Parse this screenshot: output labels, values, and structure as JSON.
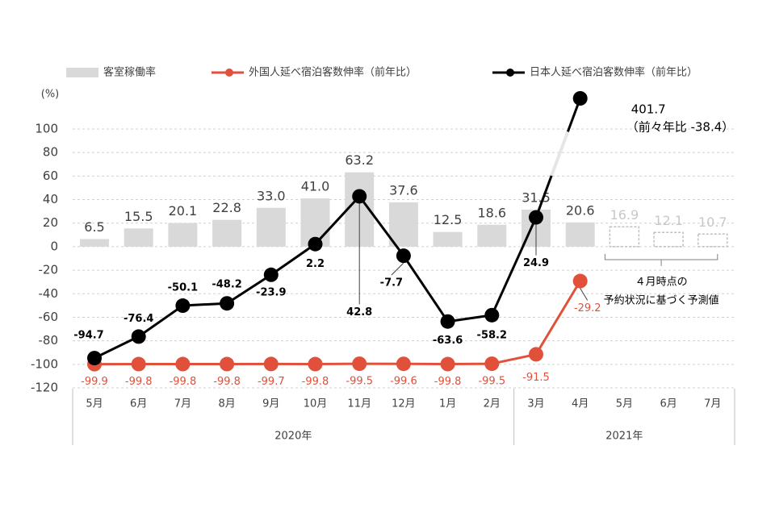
{
  "chart_data": {
    "type": "bar_line",
    "y_unit_label": "(%)",
    "categories": [
      "5月",
      "6月",
      "7月",
      "8月",
      "9月",
      "10月",
      "11月",
      "12月",
      "1月",
      "2月",
      "3月",
      "4月",
      "5月",
      "6月",
      "7月"
    ],
    "groups": [
      {
        "label": "2020年",
        "span": 10
      },
      {
        "label": "2021年",
        "span": 5
      }
    ],
    "ylim": [
      -120,
      100
    ],
    "yticks": [
      -120,
      -100,
      -80,
      -60,
      -40,
      -20,
      0,
      20,
      40,
      60,
      80,
      100
    ],
    "grid": true,
    "axis_break": true,
    "series": [
      {
        "name": "客室稼働率",
        "type": "bar",
        "color": "#d9d9d9",
        "values": [
          6.5,
          15.5,
          20.1,
          22.8,
          33.0,
          41.0,
          63.2,
          37.6,
          12.5,
          18.6,
          31.5,
          20.6,
          16.9,
          12.1,
          10.7
        ],
        "value_labels": [
          "6.5",
          "15.5",
          "20.1",
          "22.8",
          "33.0",
          "41.0",
          "63.2",
          "37.6",
          "12.5",
          "18.6",
          "31.5",
          "20.6",
          "16.9",
          "12.1",
          "10.7"
        ],
        "forecast": [
          false,
          false,
          false,
          false,
          false,
          false,
          false,
          false,
          false,
          false,
          false,
          false,
          true,
          true,
          true
        ]
      },
      {
        "name": "外国人延べ宿泊客数伸率（前年比）",
        "type": "line",
        "color": "#e0503a",
        "values": [
          -99.9,
          -99.8,
          -99.8,
          -99.8,
          -99.7,
          -99.8,
          -99.5,
          -99.6,
          -99.8,
          -99.5,
          -91.5,
          -29.2,
          null,
          null,
          null
        ]
      },
      {
        "name": "日本人延べ宿泊客数伸率（前年比）",
        "type": "line",
        "color": "#000000",
        "values": [
          -94.7,
          -76.4,
          -50.1,
          -48.2,
          -23.9,
          2.2,
          42.8,
          -7.7,
          -63.6,
          -58.2,
          24.9,
          401.7,
          null,
          null,
          null
        ]
      }
    ],
    "annotations": {
      "jp_last_note": "（前々年比 -38.4）",
      "forecast_note": [
        "４月時点の",
        "予約状況に基づく予測値"
      ]
    }
  }
}
